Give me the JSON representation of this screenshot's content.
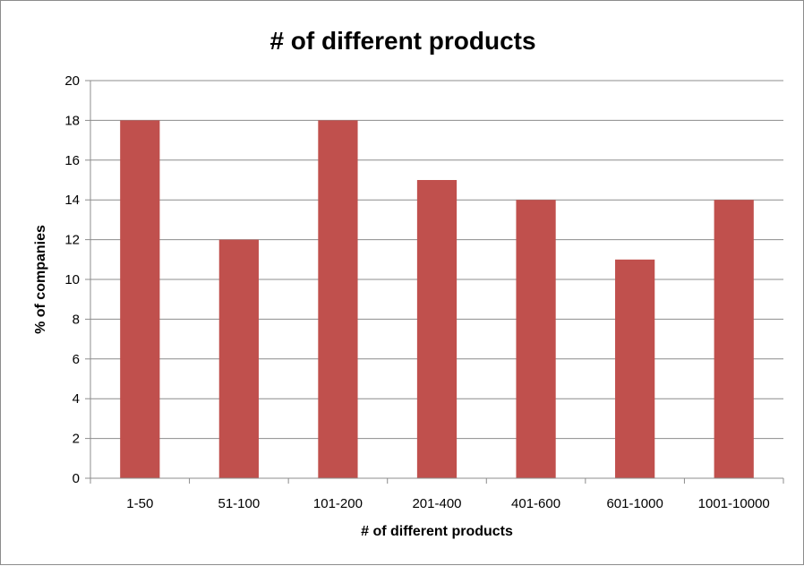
{
  "chart_data": {
    "type": "bar",
    "title": "# of different products",
    "xlabel": "# of different products",
    "ylabel": "% of companies",
    "categories": [
      "1-50",
      "51-100",
      "101-200",
      "201-400",
      "401-600",
      "601-1000",
      "1001-10000"
    ],
    "values": [
      18,
      12,
      18,
      15,
      14,
      11,
      14
    ],
    "ylim": [
      0,
      20
    ],
    "yticks": [
      "0",
      "2",
      "4",
      "6",
      "8",
      "10",
      "12",
      "14",
      "16",
      "18",
      "20"
    ],
    "grid": true,
    "legend": "none",
    "colors": {
      "bar": "#c0504d",
      "grid": "#8c8c8c",
      "axis": "#8c8c8c"
    }
  }
}
